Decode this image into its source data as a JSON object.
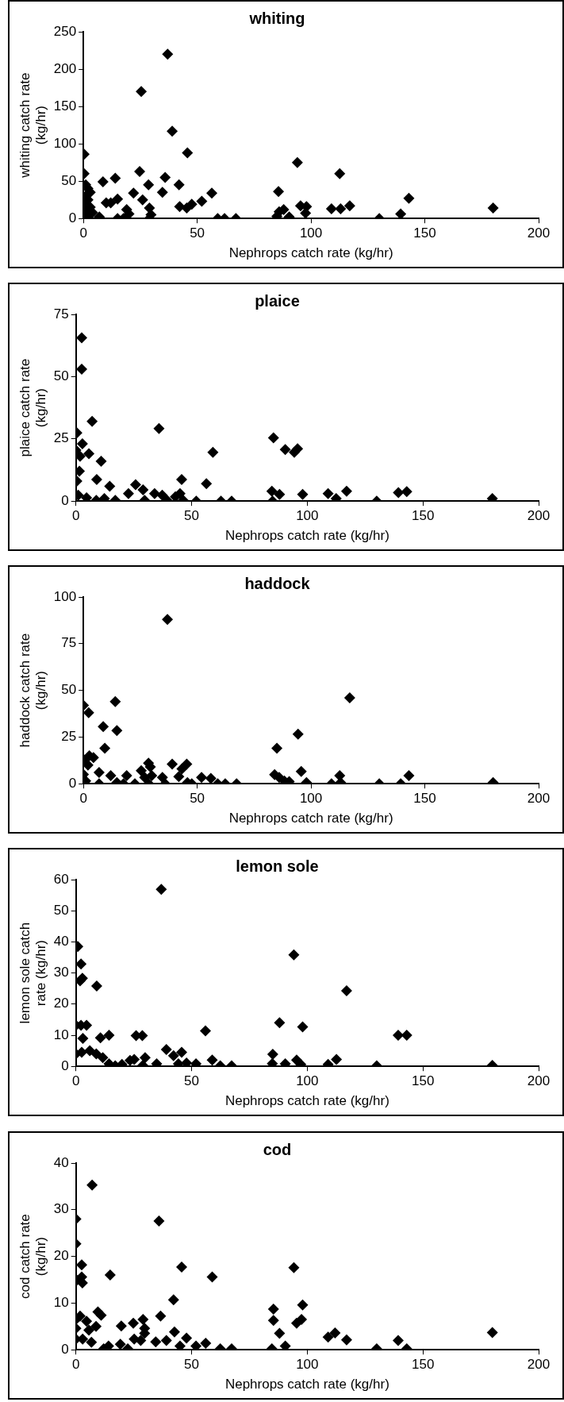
{
  "chart_data": [
    {
      "type": "scatter",
      "title": "whiting",
      "xlabel": "Nephrops catch rate (kg/hr)",
      "ylabel": "whiting catch rate (kg/hr)",
      "xlim": [
        0,
        200
      ],
      "xticks": [
        0,
        50,
        100,
        150,
        200
      ],
      "ylim": [
        0,
        250
      ],
      "yticks": [
        0,
        50,
        100,
        150,
        200,
        250
      ],
      "marker": "diamond",
      "series": [
        {
          "color": "#000000",
          "x": [
            0.3,
            0.3,
            1,
            2,
            3,
            1,
            2,
            0,
            3,
            1,
            4,
            2,
            8.6,
            14,
            7,
            10,
            12,
            15,
            15,
            17.6,
            19,
            20,
            22,
            24.7,
            25.4,
            26,
            28.6,
            29,
            29.7,
            29,
            34.7,
            35.9,
            37,
            39,
            42,
            42.3,
            45.4,
            45.7,
            47.6,
            52,
            56.4,
            59,
            62,
            67,
            85,
            85.7,
            86,
            88,
            90.4,
            94,
            95.4,
            97.6,
            98,
            109,
            112.6,
            113,
            117,
            130,
            139.4,
            143,
            180
          ],
          "values": [
            86,
            60,
            45,
            40,
            35,
            30,
            25,
            20,
            15,
            10,
            8,
            3,
            49,
            54,
            2,
            21,
            21,
            26,
            0,
            0,
            12,
            6,
            34,
            63,
            170,
            25,
            45,
            14,
            5,
            0,
            35,
            55,
            220,
            117,
            45,
            16,
            14,
            88,
            19,
            23,
            34,
            0,
            0,
            0,
            3,
            36,
            9,
            12,
            2,
            75,
            17,
            7,
            16,
            13,
            60,
            13,
            17,
            0,
            6,
            27,
            14
          ]
        }
      ]
    },
    {
      "type": "scatter",
      "title": "plaice",
      "xlabel": "Nephrops catch rate (kg/hr)",
      "ylabel": "plaice catch rate (kg/hr)",
      "xlim": [
        0,
        200
      ],
      "xticks": [
        0,
        50,
        100,
        150,
        200
      ],
      "ylim": [
        0,
        75
      ],
      "yticks": [
        0,
        25,
        50,
        75
      ],
      "marker": "diamond",
      "series": [
        {
          "color": "#000000",
          "x": [
            2.5,
            2.5,
            7,
            0.4,
            2.8,
            0,
            5.6,
            10.9,
            1.8,
            1.5,
            0.4,
            9,
            14.6,
            1,
            4.6,
            8.8,
            12.3,
            17,
            22.7,
            25.8,
            29,
            29.7,
            34,
            35.9,
            37.3,
            39.4,
            43,
            45,
            45.7,
            46.4,
            52,
            56.4,
            59.2,
            62.7,
            67.3,
            84.7,
            85,
            85.4,
            88,
            90.5,
            94.4,
            95.8,
            98,
            109,
            112.5,
            117,
            130,
            139.4,
            143,
            180
          ],
          "values": [
            65.6,
            53,
            32,
            27.4,
            23,
            20.5,
            19,
            16,
            18,
            12,
            8,
            8.7,
            6,
            2.4,
            1.3,
            0.3,
            1,
            0.3,
            3,
            6.6,
            4.5,
            0.3,
            3,
            29.2,
            2.4,
            0.3,
            1.7,
            3,
            8.7,
            0.3,
            0,
            7,
            19.6,
            0,
            0,
            4,
            0,
            25.4,
            2.7,
            20.7,
            19.6,
            21,
            2.7,
            3,
            1,
            4,
            0,
            3.4,
            3.8,
            1
          ]
        }
      ]
    },
    {
      "type": "scatter",
      "title": "haddock",
      "xlabel": "Nephrops catch rate (kg/hr)",
      "ylabel": "haddock catch rate (kg/hr)",
      "xlim": [
        0,
        200
      ],
      "xticks": [
        0,
        50,
        100,
        150,
        200
      ],
      "ylim": [
        0,
        100
      ],
      "yticks": [
        0,
        25,
        50,
        75,
        100
      ],
      "marker": "diamond",
      "series": [
        {
          "color": "#000000",
          "x": [
            0,
            2.3,
            0,
            2.6,
            4.4,
            2,
            0,
            1,
            6.9,
            8.7,
            9.4,
            12,
            6.9,
            14,
            14.7,
            14.7,
            17.6,
            19,
            22.6,
            25.4,
            26.9,
            28.6,
            29.4,
            28.7,
            30,
            34.7,
            35.9,
            36.9,
            39,
            41.9,
            43.3,
            45.4,
            45.7,
            47.6,
            51.9,
            56,
            59,
            62.3,
            67.3,
            84,
            85,
            86,
            88.3,
            90.4,
            94.3,
            95.7,
            98,
            109,
            112.6,
            113,
            117,
            130,
            139.4,
            143,
            180
          ],
          "values": [
            42,
            38,
            13,
            15,
            14,
            10,
            5,
            1.5,
            6,
            30.6,
            19,
            4.3,
            0,
            44,
            28.5,
            0.6,
            0,
            4.3,
            0,
            7,
            3.4,
            11,
            9,
            0,
            4.3,
            3.4,
            0,
            88,
            10.5,
            3.8,
            8,
            10.5,
            0.6,
            0,
            3.4,
            2.8,
            0,
            0,
            0,
            4.9,
            19,
            3.4,
            1.5,
            1.1,
            26.5,
            6.6,
            0.6,
            0,
            4.3,
            0.6,
            46,
            0,
            0,
            4.3,
            0.6
          ]
        }
      ]
    },
    {
      "type": "scatter",
      "title": "lemon sole",
      "xlabel": "Nephrops catch rate (kg/hr)",
      "ylabel": "lemon sole catch rate (kg/hr)",
      "xlim": [
        0,
        200
      ],
      "xticks": [
        0,
        50,
        100,
        150,
        200
      ],
      "ylim": [
        0,
        60
      ],
      "yticks": [
        0,
        10,
        20,
        30,
        40,
        50,
        60
      ],
      "marker": "diamond",
      "series": [
        {
          "color": "#000000",
          "x": [
            36.9,
            0.8,
            2.2,
            1.8,
            2.8,
            9,
            94.2,
            117,
            0,
            2.2,
            4.6,
            3,
            10.6,
            14.3,
            26,
            28.7,
            56,
            88,
            98,
            139.3,
            143,
            0,
            2.5,
            6,
            8.8,
            11.6,
            14.3,
            17,
            19.9,
            23.4,
            25.2,
            29.9,
            28.9,
            34.9,
            39.1,
            42.2,
            45.7,
            44.3,
            47.8,
            51.9,
            58.9,
            62.4,
            67.3,
            85.1,
            84.9,
            90.5,
            95.4,
            97.2,
            109,
            112.6,
            130,
            180
          ],
          "values": [
            56.9,
            38.5,
            32.9,
            27.5,
            28.3,
            25.8,
            35.8,
            24.3,
            13.2,
            13.2,
            13.2,
            9,
            9.2,
            10,
            9.9,
            9.9,
            11.4,
            14,
            12.7,
            10,
            10,
            4,
            4.5,
            5,
            4,
            2.8,
            0.8,
            0.2,
            0.6,
            1.9,
            2.2,
            2.8,
            0.3,
            0.8,
            5.4,
            3.4,
            4.5,
            0.8,
            1.1,
            0.8,
            2,
            0.2,
            0.2,
            3.9,
            0.9,
            0.8,
            2,
            0.6,
            0.6,
            2.2,
            0.2,
            0.3
          ]
        }
      ]
    },
    {
      "type": "scatter",
      "title": "cod",
      "xlabel": "Nephrops catch rate (kg/hr)",
      "ylabel": "cod catch rate (kg/hr)",
      "xlim": [
        0,
        200
      ],
      "xticks": [
        0,
        50,
        100,
        150,
        200
      ],
      "ylim": [
        0,
        40
      ],
      "yticks": [
        0,
        10,
        20,
        30,
        40
      ],
      "marker": "diamond",
      "series": [
        {
          "color": "#000000",
          "x": [
            7,
            0,
            0,
            35.9,
            2.5,
            0.4,
            2.5,
            2.8,
            14.8,
            45.7,
            58.9,
            94.2,
            42.2,
            98,
            85.4,
            9.5,
            10.9,
            36.6,
            0,
            1.8,
            4.6,
            29,
            24.8,
            19.6,
            85.4,
            95.4,
            97.5,
            0,
            5.6,
            8.7,
            29.7,
            29.7,
            42.6,
            88,
            112,
            109,
            117,
            180,
            0,
            2.9,
            25.2,
            28,
            47.8,
            34.5,
            39.1,
            139.3,
            6.7,
            12,
            14.1,
            19.2,
            22.4,
            45,
            51.9,
            56.1,
            62.4,
            67.3,
            84.7,
            90.5,
            130,
            143
          ],
          "values": [
            35.3,
            28,
            22.7,
            27.6,
            18.2,
            14.9,
            15.6,
            14.3,
            16,
            17.7,
            15.6,
            17.6,
            10.7,
            9.6,
            8.7,
            8.1,
            7.4,
            7.2,
            6.5,
            7.2,
            6.1,
            6.5,
            5.7,
            5.1,
            6.3,
            5.7,
            6.5,
            4.6,
            4.2,
            5,
            4.6,
            3.5,
            3.8,
            3.5,
            3.6,
            2.7,
            2.1,
            3.7,
            2.3,
            2.3,
            2.3,
            2,
            2.5,
            1.7,
            2,
            2,
            1.6,
            0.2,
            0.8,
            1.2,
            0.2,
            0.8,
            0.8,
            1.4,
            0.2,
            0.2,
            0.2,
            0.8,
            0.2,
            0.2
          ]
        }
      ]
    }
  ]
}
